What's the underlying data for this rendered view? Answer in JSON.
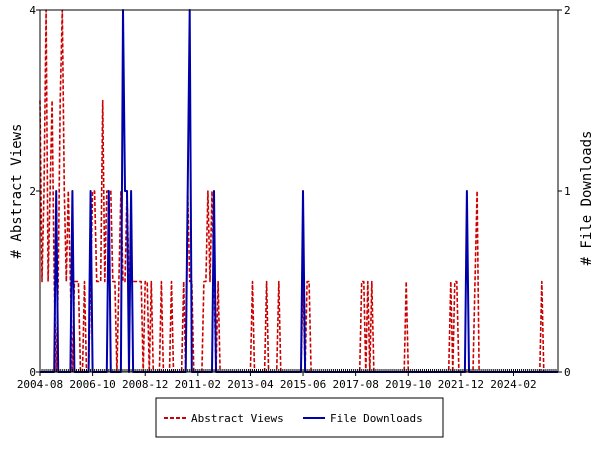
{
  "chart_data": {
    "type": "line",
    "title": "",
    "y_left_label": "# Abstract Views",
    "y_right_label": "# File Downloads",
    "y_left_range": [
      0,
      4
    ],
    "y_right_range": [
      0,
      2
    ],
    "y_left_ticks": [
      "0",
      "2",
      "4"
    ],
    "y_right_ticks": [
      "0",
      "1",
      "2"
    ],
    "x_range": [
      "2004-08",
      "2025-12"
    ],
    "x_tick_labels": [
      "2004-08",
      "2006-10",
      "2008-12",
      "2011-02",
      "2013-04",
      "2015-06",
      "2017-08",
      "2019-10",
      "2021-12",
      "2024-02"
    ],
    "grid": false,
    "legend_position": "bottom-center",
    "colors": {
      "abstract_views": "#cc0000",
      "file_downloads": "#0000aa"
    },
    "series": [
      {
        "name": "Abstract Views",
        "axis": "left",
        "style": "dashed",
        "points": [
          [
            "2004-08",
            3
          ],
          [
            "2004-09",
            1
          ],
          [
            "2004-10",
            2
          ],
          [
            "2004-11",
            4
          ],
          [
            "2004-12",
            1
          ],
          [
            "2005-01",
            2
          ],
          [
            "2005-02",
            3
          ],
          [
            "2005-03",
            1
          ],
          [
            "2005-04",
            0
          ],
          [
            "2005-05",
            1
          ],
          [
            "2005-06",
            3
          ],
          [
            "2005-07",
            4
          ],
          [
            "2005-08",
            2
          ],
          [
            "2005-09",
            1
          ],
          [
            "2005-10",
            2
          ],
          [
            "2005-11",
            1
          ],
          [
            "2005-12",
            0
          ],
          [
            "2006-01",
            1
          ],
          [
            "2006-02",
            1
          ],
          [
            "2006-03",
            1
          ],
          [
            "2006-04",
            0
          ],
          [
            "2006-05",
            0
          ],
          [
            "2006-06",
            1
          ],
          [
            "2006-07",
            0
          ],
          [
            "2006-08",
            0
          ],
          [
            "2006-09",
            1
          ],
          [
            "2006-10",
            2
          ],
          [
            "2006-11",
            2
          ],
          [
            "2006-12",
            1
          ],
          [
            "2007-01",
            1
          ],
          [
            "2007-02",
            1
          ],
          [
            "2007-03",
            3
          ],
          [
            "2007-04",
            1
          ],
          [
            "2007-05",
            2
          ],
          [
            "2007-06",
            2
          ],
          [
            "2007-07",
            2
          ],
          [
            "2007-08",
            1
          ],
          [
            "2007-09",
            1
          ],
          [
            "2007-10",
            0
          ],
          [
            "2007-11",
            1
          ],
          [
            "2007-12",
            2
          ],
          [
            "2008-01",
            1
          ],
          [
            "2008-02",
            1
          ],
          [
            "2008-03",
            2
          ],
          [
            "2008-04",
            1
          ],
          [
            "2008-05",
            1
          ],
          [
            "2008-06",
            1
          ],
          [
            "2008-07",
            1
          ],
          [
            "2008-08",
            1
          ],
          [
            "2008-09",
            1
          ],
          [
            "2008-10",
            1
          ],
          [
            "2008-11",
            0
          ],
          [
            "2008-12",
            1
          ],
          [
            "2009-01",
            1
          ],
          [
            "2009-02",
            0
          ],
          [
            "2009-03",
            1
          ],
          [
            "2009-04",
            0
          ],
          [
            "2009-05",
            0
          ],
          [
            "2009-06",
            0
          ],
          [
            "2009-07",
            0
          ],
          [
            "2009-08",
            1
          ],
          [
            "2009-09",
            0
          ],
          [
            "2009-10",
            0
          ],
          [
            "2009-11",
            0
          ],
          [
            "2009-12",
            0
          ],
          [
            "2010-01",
            1
          ],
          [
            "2010-02",
            0
          ],
          [
            "2010-03",
            0
          ],
          [
            "2010-04",
            0
          ],
          [
            "2010-05",
            0
          ],
          [
            "2010-06",
            0
          ],
          [
            "2010-07",
            1
          ],
          [
            "2010-08",
            0
          ],
          [
            "2010-09",
            2
          ],
          [
            "2010-10",
            1
          ],
          [
            "2010-11",
            1
          ],
          [
            "2010-12",
            0
          ],
          [
            "2011-01",
            0
          ],
          [
            "2011-02",
            0
          ],
          [
            "2011-03",
            0
          ],
          [
            "2011-04",
            0
          ],
          [
            "2011-05",
            1
          ],
          [
            "2011-06",
            1
          ],
          [
            "2011-07",
            2
          ],
          [
            "2011-08",
            1
          ],
          [
            "2011-09",
            2
          ],
          [
            "2011-10",
            1
          ],
          [
            "2011-11",
            0
          ],
          [
            "2011-12",
            1
          ],
          [
            "2012-01",
            0
          ],
          [
            "2013-04",
            0
          ],
          [
            "2013-05",
            1
          ],
          [
            "2013-06",
            0
          ],
          [
            "2013-11",
            0
          ],
          [
            "2013-12",
            1
          ],
          [
            "2014-01",
            0
          ],
          [
            "2014-05",
            0
          ],
          [
            "2014-06",
            1
          ],
          [
            "2014-07",
            0
          ],
          [
            "2015-05",
            0
          ],
          [
            "2015-06",
            1
          ],
          [
            "2015-07",
            0
          ],
          [
            "2015-08",
            1
          ],
          [
            "2015-09",
            1
          ],
          [
            "2015-10",
            0
          ],
          [
            "2017-10",
            0
          ],
          [
            "2017-11",
            1
          ],
          [
            "2017-12",
            1
          ],
          [
            "2018-01",
            0
          ],
          [
            "2018-02",
            1
          ],
          [
            "2018-03",
            0
          ],
          [
            "2018-04",
            1
          ],
          [
            "2018-05",
            0
          ],
          [
            "2019-08",
            0
          ],
          [
            "2019-09",
            1
          ],
          [
            "2019-10",
            0
          ],
          [
            "2021-06",
            0
          ],
          [
            "2021-07",
            1
          ],
          [
            "2021-08",
            0
          ],
          [
            "2021-09",
            1
          ],
          [
            "2021-10",
            1
          ],
          [
            "2021-11",
            0
          ],
          [
            "2022-06",
            0
          ],
          [
            "2022-07",
            1
          ],
          [
            "2022-08",
            2
          ],
          [
            "2022-09",
            0
          ],
          [
            "2025-03",
            0
          ],
          [
            "2025-04",
            1
          ],
          [
            "2025-05",
            0
          ],
          [
            "2025-12",
            0
          ]
        ]
      },
      {
        "name": "File Downloads",
        "axis": "right",
        "style": "solid",
        "points": [
          [
            "2004-08",
            0
          ],
          [
            "2005-03",
            0
          ],
          [
            "2005-04",
            1
          ],
          [
            "2005-05",
            0
          ],
          [
            "2005-11",
            0
          ],
          [
            "2005-12",
            1
          ],
          [
            "2006-01",
            0
          ],
          [
            "2006-08",
            0
          ],
          [
            "2006-09",
            1
          ],
          [
            "2006-10",
            0
          ],
          [
            "2007-05",
            0
          ],
          [
            "2007-06",
            1
          ],
          [
            "2007-07",
            0
          ],
          [
            "2007-12",
            0
          ],
          [
            "2008-01",
            2
          ],
          [
            "2008-02",
            1
          ],
          [
            "2008-03",
            1
          ],
          [
            "2008-04",
            0
          ],
          [
            "2008-05",
            1
          ],
          [
            "2008-06",
            0
          ],
          [
            "2010-08",
            0
          ],
          [
            "2010-09",
            1
          ],
          [
            "2010-10",
            2
          ],
          [
            "2010-11",
            0
          ],
          [
            "2011-09",
            0
          ],
          [
            "2011-10",
            1
          ],
          [
            "2011-11",
            0
          ],
          [
            "2015-05",
            0
          ],
          [
            "2015-06",
            1
          ],
          [
            "2015-07",
            0
          ],
          [
            "2022-02",
            0
          ],
          [
            "2022-03",
            1
          ],
          [
            "2022-04",
            0
          ],
          [
            "2025-12",
            0
          ]
        ]
      }
    ]
  }
}
